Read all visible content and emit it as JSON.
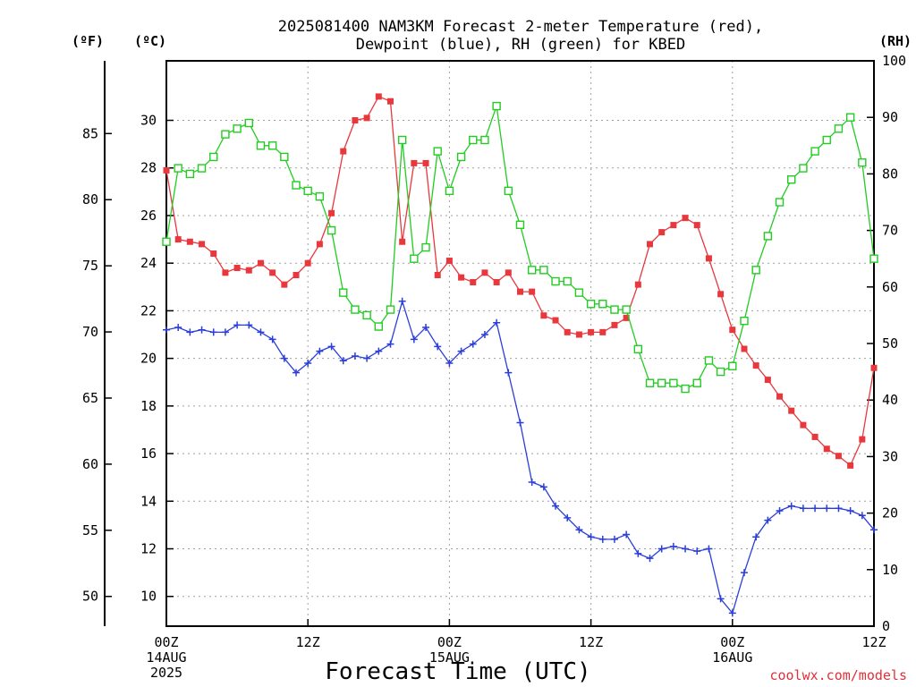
{
  "chart_data": {
    "type": "line",
    "title": [
      "2025081400 NAM3KM Forecast 2-meter Temperature (red),",
      "Dewpoint (blue), RH (green) for KBED"
    ],
    "xlabel": "Forecast Time (UTC)",
    "unit_labels": {
      "fahrenheit": "(ºF)",
      "celsius": "(ºC)",
      "rh": "(RH)"
    },
    "credit": "coolwx.com/models",
    "x_ticks": [
      {
        "hour": 0,
        "lines": [
          "00Z",
          "14AUG",
          "2025"
        ]
      },
      {
        "hour": 12,
        "lines": [
          "12Z"
        ]
      },
      {
        "hour": 24,
        "lines": [
          "00Z",
          "15AUG"
        ]
      },
      {
        "hour": 36,
        "lines": [
          "12Z"
        ]
      },
      {
        "hour": 48,
        "lines": [
          "00Z",
          "16AUG"
        ]
      },
      {
        "hour": 60,
        "lines": [
          "12Z"
        ]
      }
    ],
    "xlim": [
      0,
      60
    ],
    "celsius_ylim": [
      8.75,
      32.5
    ],
    "celsius_ticks": [
      10,
      12,
      14,
      16,
      18,
      20,
      22,
      24,
      26,
      28,
      30
    ],
    "fahrenheit_ticks": [
      50,
      55,
      60,
      65,
      70,
      75,
      80,
      85
    ],
    "rh_ylim": [
      0,
      100
    ],
    "rh_ticks": [
      0,
      10,
      20,
      30,
      40,
      50,
      60,
      70,
      80,
      90,
      100
    ],
    "grid": true,
    "hours": [
      0,
      1,
      2,
      3,
      4,
      5,
      6,
      7,
      8,
      9,
      10,
      11,
      12,
      13,
      14,
      15,
      16,
      17,
      18,
      19,
      20,
      21,
      22,
      23,
      24,
      25,
      26,
      27,
      28,
      29,
      30,
      31,
      32,
      33,
      34,
      35,
      36,
      37,
      38,
      39,
      40,
      41,
      42,
      43,
      44,
      45,
      46,
      47,
      48,
      49,
      50,
      51,
      52,
      53,
      54,
      55,
      56,
      57,
      58,
      59,
      60
    ],
    "series": [
      {
        "name": "2-meter Temperature",
        "color": "#e8383d",
        "marker": "filled-square",
        "axis": "celsius",
        "values": [
          27.9,
          25.0,
          24.9,
          24.8,
          24.4,
          23.6,
          23.8,
          23.7,
          24.0,
          23.6,
          23.1,
          23.5,
          24.0,
          24.8,
          26.1,
          28.7,
          30.0,
          30.1,
          31.0,
          30.8,
          24.9,
          28.2,
          28.2,
          23.5,
          24.1,
          23.4,
          23.2,
          23.6,
          23.2,
          23.6,
          22.8,
          22.8,
          21.8,
          21.6,
          21.1,
          21.0,
          21.1,
          21.1,
          21.4,
          21.7,
          23.1,
          24.8,
          25.3,
          25.6,
          25.9,
          25.6,
          24.2,
          22.7,
          21.2,
          20.4,
          19.7,
          19.1,
          18.4,
          17.8,
          17.2,
          16.7,
          16.2,
          15.9,
          15.5,
          16.6,
          19.6
        ]
      },
      {
        "name": "Dewpoint",
        "color": "#2b3fd8",
        "marker": "plus",
        "axis": "celsius",
        "values": [
          21.2,
          21.3,
          21.1,
          21.2,
          21.1,
          21.1,
          21.4,
          21.4,
          21.1,
          20.8,
          20.0,
          19.4,
          19.8,
          20.3,
          20.5,
          19.9,
          20.1,
          20.0,
          20.3,
          20.6,
          22.4,
          20.8,
          21.3,
          20.5,
          19.8,
          20.3,
          20.6,
          21.0,
          21.5,
          19.4,
          17.3,
          14.8,
          14.6,
          13.8,
          13.3,
          12.8,
          12.5,
          12.4,
          12.4,
          12.6,
          11.8,
          11.6,
          12.0,
          12.1,
          12.0,
          11.9,
          12.0,
          9.9,
          9.3,
          11.0,
          12.5,
          13.2,
          13.6,
          13.8,
          13.7,
          13.7,
          13.7,
          13.7,
          13.6,
          13.4,
          12.8
        ]
      },
      {
        "name": "RH",
        "color": "#22cc22",
        "marker": "open-square",
        "axis": "rh",
        "values": [
          68,
          81,
          80,
          81,
          83,
          87,
          88,
          89,
          85,
          85,
          83,
          78,
          77,
          76,
          70,
          59,
          56,
          55,
          53,
          56,
          86,
          65,
          67,
          84,
          77,
          83,
          86,
          86,
          92,
          77,
          71,
          63,
          63,
          61,
          61,
          59,
          57,
          57,
          56,
          56,
          49,
          43,
          43,
          43,
          42,
          43,
          47,
          45,
          46,
          54,
          63,
          69,
          75,
          79,
          81,
          84,
          86,
          88,
          90,
          82,
          65
        ]
      }
    ]
  }
}
